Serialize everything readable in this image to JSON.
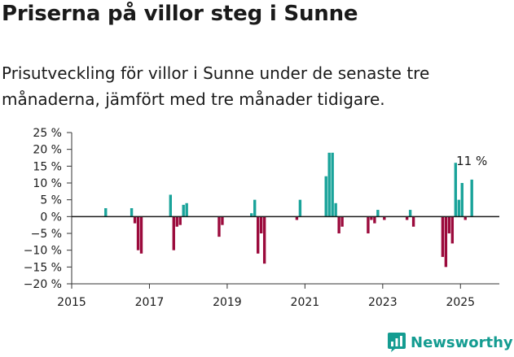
{
  "title": "Priserna på villor steg i Sunne",
  "subtitle": "Prisutveckling för villor i Sunne under de senaste tre månaderna, jämfört med tre månader tidigare.",
  "brand": {
    "name": "Newsworthy",
    "color": "#149c91"
  },
  "colors": {
    "positive": "#1aa39a",
    "negative": "#9b0a3c",
    "zero_line": "#1a1a1a",
    "axis": "#333333"
  },
  "chart_data": {
    "type": "bar",
    "x_unit": "month",
    "ylim": [
      -20,
      25
    ],
    "xlim": [
      "2015-01",
      "2025-12"
    ],
    "y_ticks": [
      25,
      20,
      15,
      10,
      5,
      0,
      -5,
      -10,
      -15,
      -20
    ],
    "y_tick_labels": [
      "25 %",
      "20 %",
      "15 %",
      "10 %",
      "5 %",
      "0 %",
      "−5 %",
      "−10 %",
      "−15 %",
      "−20 %"
    ],
    "x_ticks": [
      "2015-01",
      "2017-01",
      "2019-01",
      "2021-01",
      "2023-01",
      "2025-01"
    ],
    "x_tick_labels": [
      "2015",
      "2017",
      "2019",
      "2021",
      "2023",
      "2025"
    ],
    "grid": false,
    "annotation": {
      "x": "2025-04",
      "value": 11,
      "text": "11 %"
    },
    "x": [
      "2015-11",
      "2016-07",
      "2016-08",
      "2016-09",
      "2016-10",
      "2017-07",
      "2017-08",
      "2017-09",
      "2017-10",
      "2017-11",
      "2017-12",
      "2018-10",
      "2018-11",
      "2019-08",
      "2019-09",
      "2019-10",
      "2019-11",
      "2019-12",
      "2020-10",
      "2020-11",
      "2021-07",
      "2021-08",
      "2021-09",
      "2021-10",
      "2021-11",
      "2021-12",
      "2022-08",
      "2022-09",
      "2022-10",
      "2022-11",
      "2023-01",
      "2023-08",
      "2023-09",
      "2023-10",
      "2024-07",
      "2024-08",
      "2024-09",
      "2024-10",
      "2024-11",
      "2024-12",
      "2025-01",
      "2025-02",
      "2025-04"
    ],
    "values": [
      2.5,
      2.5,
      -2,
      -10,
      -11,
      6.5,
      -10,
      -3,
      -2.5,
      3.5,
      4,
      -6,
      -2.5,
      1,
      5,
      -11,
      -5,
      -14,
      -1,
      5,
      12,
      19,
      19,
      4,
      -5,
      -3,
      -5,
      -1,
      -2,
      2,
      -1,
      -1,
      2,
      -3,
      -12,
      -15,
      -5,
      -8,
      16,
      5,
      10,
      -1,
      11
    ]
  }
}
